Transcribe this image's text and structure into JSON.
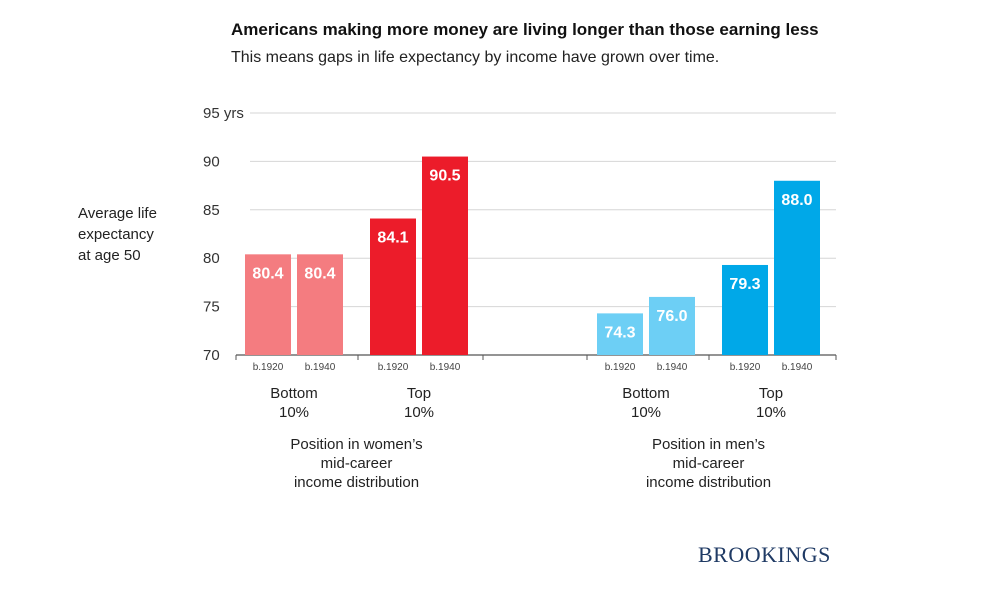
{
  "chart_data": {
    "type": "bar",
    "title": "Americans making more money are living longer than those earning less",
    "subtitle": "This means gaps in life expectancy by income have grown over time.",
    "ylabel": [
      "Average life",
      "expectancy",
      "at age 50"
    ],
    "yticks": [
      "95 yrs",
      "90",
      "85",
      "80",
      "75",
      "70"
    ],
    "ytick_values": [
      95,
      90,
      85,
      80,
      75,
      70
    ],
    "ylim": [
      70,
      95
    ],
    "grid": true,
    "groups": [
      {
        "label": [
          "Position in women’s",
          "mid-career",
          "income distribution"
        ],
        "subgroups": [
          {
            "label": [
              "Bottom",
              "10%"
            ],
            "bars": [
              {
                "cohort": "b.1920",
                "value": 80.4,
                "display": "80.4",
                "color": "#f47c80"
              },
              {
                "cohort": "b.1940",
                "value": 80.4,
                "display": "80.4",
                "color": "#f47c80"
              }
            ]
          },
          {
            "label": [
              "Top",
              "10%"
            ],
            "bars": [
              {
                "cohort": "b.1920",
                "value": 84.1,
                "display": "84.1",
                "color": "#ec1c2a"
              },
              {
                "cohort": "b.1940",
                "value": 90.5,
                "display": "90.5",
                "color": "#ec1c2a"
              }
            ]
          }
        ]
      },
      {
        "label": [
          "Position in men’s",
          "mid-career",
          "income distribution"
        ],
        "subgroups": [
          {
            "label": [
              "Bottom",
              "10%"
            ],
            "bars": [
              {
                "cohort": "b.1920",
                "value": 74.3,
                "display": "74.3",
                "color": "#6dcff5"
              },
              {
                "cohort": "b.1940",
                "value": 76.0,
                "display": "76.0",
                "color": "#6dcff5"
              }
            ]
          },
          {
            "label": [
              "Top",
              "10%"
            ],
            "bars": [
              {
                "cohort": "b.1920",
                "value": 79.3,
                "display": "79.3",
                "color": "#00a8e8"
              },
              {
                "cohort": "b.1940",
                "value": 88.0,
                "display": "88.0",
                "color": "#00a8e8"
              }
            ]
          }
        ]
      }
    ]
  },
  "branding": {
    "logo_text": "BROOKINGS"
  }
}
